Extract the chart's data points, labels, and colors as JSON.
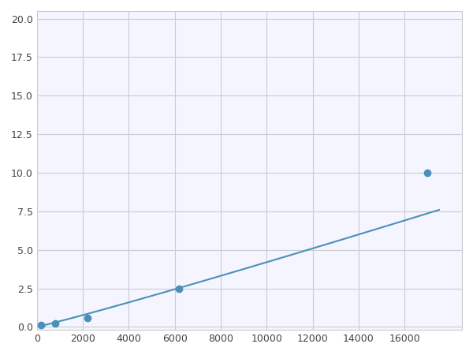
{
  "x": [
    200,
    800,
    2200,
    6200,
    17000
  ],
  "y": [
    0.1,
    0.2,
    0.6,
    2.5,
    10.0
  ],
  "line_color": "#4a90b8",
  "marker_color": "#4a90b8",
  "marker_size": 6,
  "marker_style": "o",
  "linewidth": 1.5,
  "xlim": [
    0,
    18500
  ],
  "ylim": [
    -0.2,
    20.5
  ],
  "xticks": [
    0,
    2000,
    4000,
    6000,
    8000,
    10000,
    12000,
    14000,
    16000
  ],
  "yticks": [
    0.0,
    2.5,
    5.0,
    7.5,
    10.0,
    12.5,
    15.0,
    17.5,
    20.0
  ],
  "grid_color": "#cccccc",
  "background_color": "#f5f5ff",
  "figure_bg": "#ffffff"
}
